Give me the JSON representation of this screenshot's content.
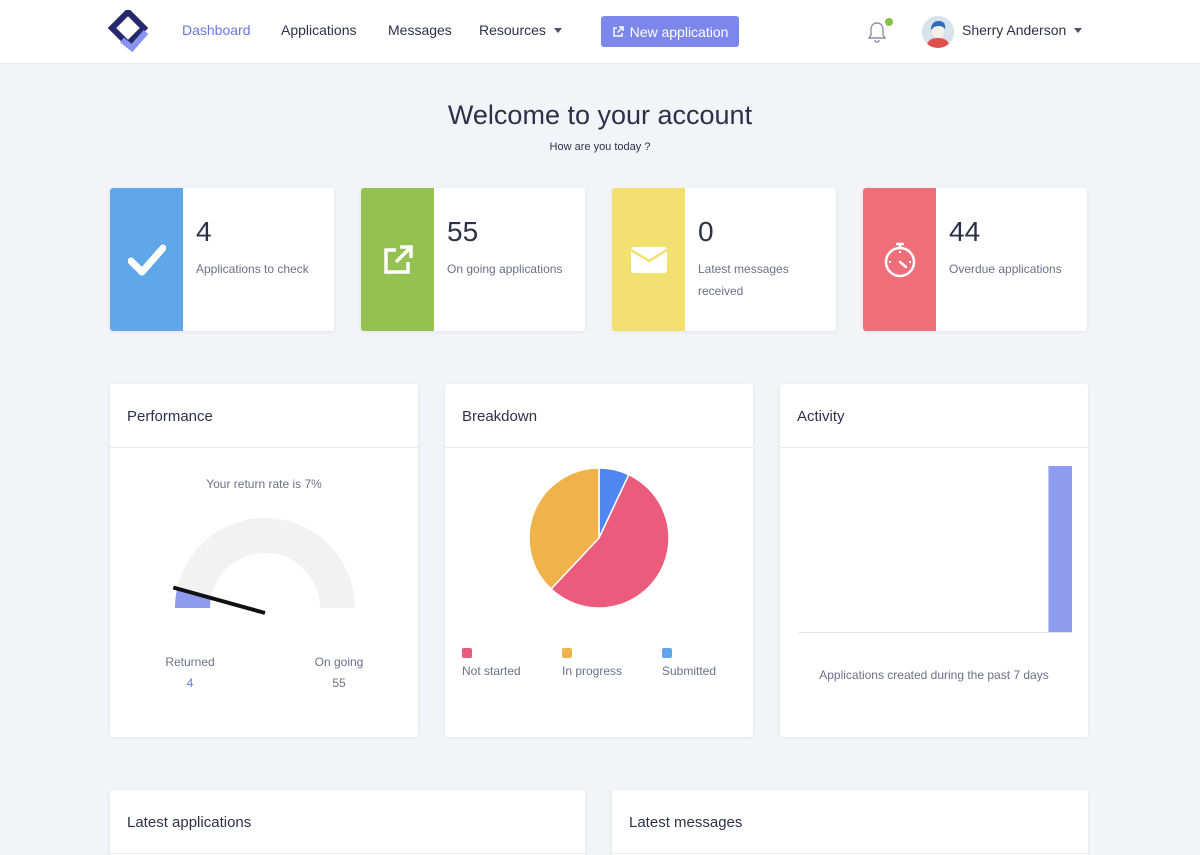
{
  "nav": {
    "items": [
      {
        "label": "Dashboard",
        "active": true
      },
      {
        "label": "Applications",
        "active": false
      },
      {
        "label": "Messages",
        "active": false
      },
      {
        "label": "Resources",
        "active": false
      }
    ],
    "new_button_label": "New application",
    "user_name": "Sherry Anderson",
    "accent_color": "#6877e0"
  },
  "welcome": {
    "title": "Welcome to your account",
    "subtitle": "How are you today ?"
  },
  "stats": [
    {
      "value": "4",
      "label": "Applications to check",
      "color": "#5fa7e8",
      "icon": "checkmark-icon"
    },
    {
      "value": "55",
      "label": "On going applications",
      "color": "#94c152",
      "icon": "external-link-icon"
    },
    {
      "value": "0",
      "label": "Latest messages received",
      "color": "#f2e070",
      "icon": "envelope-icon"
    },
    {
      "value": "44",
      "label": "Overdue applications",
      "color": "#ee6e7a",
      "icon": "stopwatch-icon"
    }
  ],
  "performance": {
    "title": "Performance",
    "caption": "Your return rate is 7%",
    "returned_label": "Returned",
    "returned_value": "4",
    "ongoing_label": "On going",
    "ongoing_value": "55",
    "return_rate": 0.07
  },
  "breakdown": {
    "title": "Breakdown",
    "chart_data": {
      "type": "pie",
      "categories": [
        "Not started",
        "In progress",
        "Submitted"
      ],
      "values": [
        55,
        38,
        7
      ],
      "colors": [
        "#ea5b7c",
        "#f2b24b",
        "#4f86f0"
      ]
    }
  },
  "activity": {
    "title": "Activity",
    "caption": "Applications created during the past 7 days",
    "chart_data": {
      "type": "bar",
      "categories": [
        "",
        "",
        "",
        "",
        "",
        "",
        ""
      ],
      "values": [
        0,
        0,
        0,
        0,
        0,
        0,
        4
      ],
      "color": "#8f9bef",
      "ylim": [
        0,
        4
      ]
    }
  },
  "bottom": {
    "latest_applications_title": "Latest applications",
    "latest_messages_title": "Latest messages"
  }
}
